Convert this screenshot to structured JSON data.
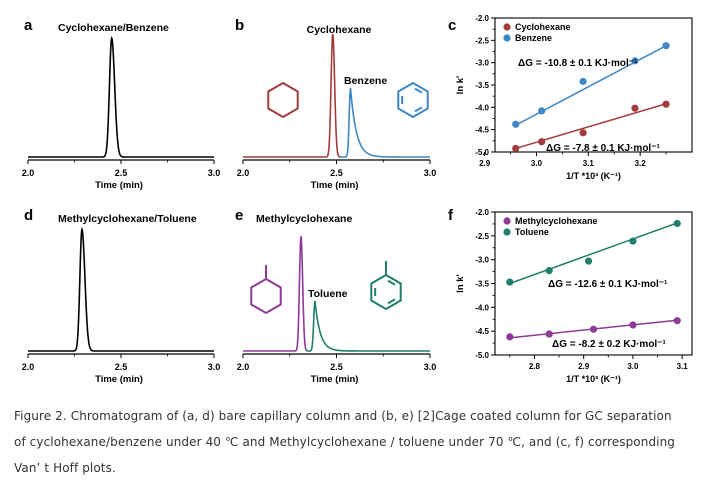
{
  "colors": {
    "axis": "#000000",
    "cyclohexane": "#a23b3c",
    "benzene": "#3f88c5",
    "methylcyclohexane": "#8e3a96",
    "toluene": "#1f7f6a",
    "caption": "#333333"
  },
  "chart_data": [
    {
      "panel": "a",
      "type": "line",
      "title": "Cyclohexane/Benzene",
      "xlabel": "Time (min)",
      "ylabel": "",
      "xlim": [
        2.0,
        3.0
      ],
      "xticks": [
        "2.0",
        "2.5",
        "3.0"
      ],
      "series": [
        {
          "name": "Cyclohexane/Benzene",
          "color": "#000000",
          "peaks": [
            {
              "center": 2.45,
              "height": 0.88,
              "width_left": 0.012,
              "width_right": 0.016
            }
          ]
        }
      ]
    },
    {
      "panel": "b",
      "type": "line",
      "title": "Cyclohexane",
      "xlabel": "Time (min)",
      "ylabel": "",
      "xlim": [
        2.0,
        3.0
      ],
      "xticks": [
        "2.0",
        "2.5",
        "3.0"
      ],
      "annotations": [
        {
          "text": "Benzene",
          "label_key": "peak_label"
        }
      ],
      "peak_label": "Benzene",
      "series": [
        {
          "name": "Cyclohexane",
          "color": "#a23b3c",
          "peaks": [
            {
              "center": 2.48,
              "height": 0.91,
              "width_left": 0.009,
              "width_right": 0.01
            }
          ]
        },
        {
          "name": "Benzene",
          "color": "#3f88c5",
          "peaks": [
            {
              "center": 2.575,
              "height": 0.51,
              "width_left": 0.007,
              "width_right": 0.05
            }
          ]
        }
      ],
      "structures": [
        "cyclohexane",
        "benzene"
      ]
    },
    {
      "panel": "c",
      "type": "scatter",
      "title": "",
      "xlabel": "1/T *10³ (K⁻¹)",
      "ylabel": "ln k'",
      "xlim": [
        2.92,
        3.3
      ],
      "ylim": [
        -5.0,
        -2.0
      ],
      "xticks": [
        2.9,
        3.0,
        3.1,
        3.2
      ],
      "yticks": [
        -2.0,
        -2.5,
        -3.0,
        -3.5,
        -4.0,
        -4.5,
        -5.0
      ],
      "legend": "top-left",
      "series": [
        {
          "name": "Cyclohexane",
          "color": "#a23b3c",
          "x": [
            2.96,
            3.01,
            3.09,
            3.19,
            3.25
          ],
          "y": [
            -4.92,
            -4.77,
            -4.57,
            -4.02,
            -3.93
          ],
          "fit": [
            [
              2.96,
              -4.92
            ],
            [
              3.25,
              -3.92
            ]
          ],
          "annotation": "ΔG = -7.8 ± 0.1 KJ·mol⁻¹"
        },
        {
          "name": "Benzene",
          "color": "#3f88c5",
          "x": [
            2.96,
            3.01,
            3.09,
            3.19,
            3.25
          ],
          "y": [
            -4.38,
            -4.08,
            -3.42,
            -2.96,
            -2.62
          ],
          "fit": [
            [
              2.96,
              -4.4
            ],
            [
              3.25,
              -2.62
            ]
          ],
          "annotation": "ΔG = -10.8 ± 0.1 KJ·mol⁻¹"
        }
      ]
    },
    {
      "panel": "d",
      "type": "line",
      "title": "Methylcyclohexane/Toluene",
      "xlabel": "Time (min)",
      "ylabel": "",
      "xlim": [
        2.0,
        3.0
      ],
      "xticks": [
        "2.0",
        "2.5",
        "3.0"
      ],
      "series": [
        {
          "name": "Methylcyclohexane/Toluene",
          "color": "#000000",
          "peaks": [
            {
              "center": 2.29,
              "height": 0.9,
              "width_left": 0.011,
              "width_right": 0.016
            }
          ]
        }
      ]
    },
    {
      "panel": "e",
      "type": "line",
      "title": "Methylcyclohexane",
      "xlabel": "Time (min)",
      "ylabel": "",
      "xlim": [
        2.0,
        3.0
      ],
      "xticks": [
        "2.0",
        "2.5",
        "3.0"
      ],
      "peak_label": "Toluene",
      "series": [
        {
          "name": "Methylcyclohexane",
          "color": "#8e3a96",
          "peaks": [
            {
              "center": 2.31,
              "height": 0.85,
              "width_left": 0.008,
              "width_right": 0.009
            }
          ]
        },
        {
          "name": "Toluene",
          "color": "#1f7f6a",
          "peaks": [
            {
              "center": 2.385,
              "height": 0.37,
              "width_left": 0.007,
              "width_right": 0.045
            }
          ]
        }
      ],
      "structures": [
        "methylcyclohexane",
        "toluene"
      ]
    },
    {
      "panel": "f",
      "type": "scatter",
      "title": "",
      "xlabel": "1/T *10³ (K⁻¹)",
      "ylabel": "ln k'",
      "xlim": [
        2.72,
        3.12
      ],
      "ylim": [
        -5.0,
        -2.0
      ],
      "xticks": [
        2.8,
        2.9,
        3.0,
        3.1
      ],
      "yticks": [
        -2.0,
        -2.5,
        -3.0,
        -3.5,
        -4.0,
        -4.5,
        -5.0
      ],
      "legend": "top-left",
      "series": [
        {
          "name": "Methylcyclohexane",
          "color": "#8e3a96",
          "x": [
            2.75,
            2.83,
            2.92,
            3.0,
            3.09
          ],
          "y": [
            -4.62,
            -4.56,
            -4.46,
            -4.37,
            -4.28
          ],
          "fit": [
            [
              2.75,
              -4.64
            ],
            [
              3.09,
              -4.27
            ]
          ],
          "annotation": "ΔG = -8.2 ± 0.2 KJ·mol⁻¹"
        },
        {
          "name": "Toluene",
          "color": "#1f7f6a",
          "x": [
            2.75,
            2.83,
            2.91,
            3.0,
            3.09
          ],
          "y": [
            -3.47,
            -3.23,
            -3.03,
            -2.61,
            -2.24
          ],
          "fit": [
            [
              2.75,
              -3.5
            ],
            [
              3.09,
              -2.23
            ]
          ],
          "annotation": "ΔG = -12.6 ± 0.1 KJ·mol⁻¹"
        }
      ]
    }
  ],
  "caption": {
    "line1": "Figure 2. Chromatogram of (a, d) bare capillary column and (b, e) [2]Cage coated column for GC separation",
    "line2": "of cyclohexane/benzene under 40 ℃ and Methylcyclohexane / toluene under 70 ℃, and (c, f) corresponding",
    "line3": "Van’ t Hoff plots."
  }
}
